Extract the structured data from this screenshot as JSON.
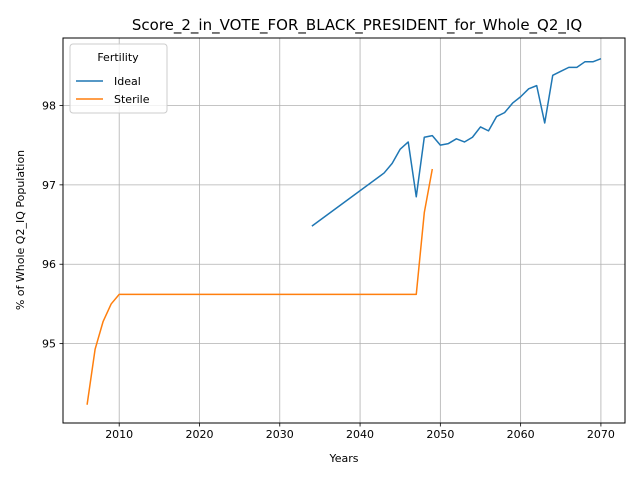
{
  "chart_data": {
    "type": "line",
    "title": "Score_2_in_VOTE_FOR_BLACK_PRESIDENT_for_Whole_Q2_IQ",
    "xlabel": "Years",
    "ylabel": "% of Whole Q2_IQ Population",
    "xlim": [
      2003,
      2073
    ],
    "ylim": [
      94.0,
      98.85
    ],
    "xticks": [
      2010,
      2020,
      2030,
      2040,
      2050,
      2060,
      2070
    ],
    "xtick_labels": [
      "2010",
      "2020",
      "2030",
      "2040",
      "2050",
      "2060",
      "2070"
    ],
    "yticks": [
      95,
      96,
      97,
      98
    ],
    "ytick_labels": [
      "95",
      "96",
      "97",
      "98"
    ],
    "grid": true,
    "legend": {
      "title": "Fertility",
      "position": "top-left"
    },
    "series": [
      {
        "name": "Ideal",
        "color": "#1f77b4",
        "x": [
          2034,
          2043,
          2044,
          2045,
          2046,
          2047,
          2048,
          2049,
          2050,
          2051,
          2052,
          2053,
          2054,
          2055,
          2056,
          2057,
          2058,
          2059,
          2060,
          2061,
          2062,
          2063,
          2064,
          2065,
          2066,
          2067,
          2068,
          2069,
          2070
        ],
        "y": [
          96.48,
          97.15,
          97.27,
          97.45,
          97.54,
          96.85,
          97.6,
          97.62,
          97.5,
          97.52,
          97.58,
          97.54,
          97.6,
          97.73,
          97.68,
          97.86,
          97.91,
          98.03,
          98.11,
          98.21,
          98.25,
          97.78,
          98.38,
          98.43,
          98.48,
          98.48,
          98.55,
          98.55,
          98.59
        ]
      },
      {
        "name": "Sterile",
        "color": "#ff7f0e",
        "x": [
          2006,
          2007,
          2008,
          2009,
          2010,
          2047,
          2048,
          2049
        ],
        "y": [
          94.23,
          94.93,
          95.28,
          95.5,
          95.62,
          95.62,
          96.65,
          97.2
        ]
      }
    ]
  }
}
